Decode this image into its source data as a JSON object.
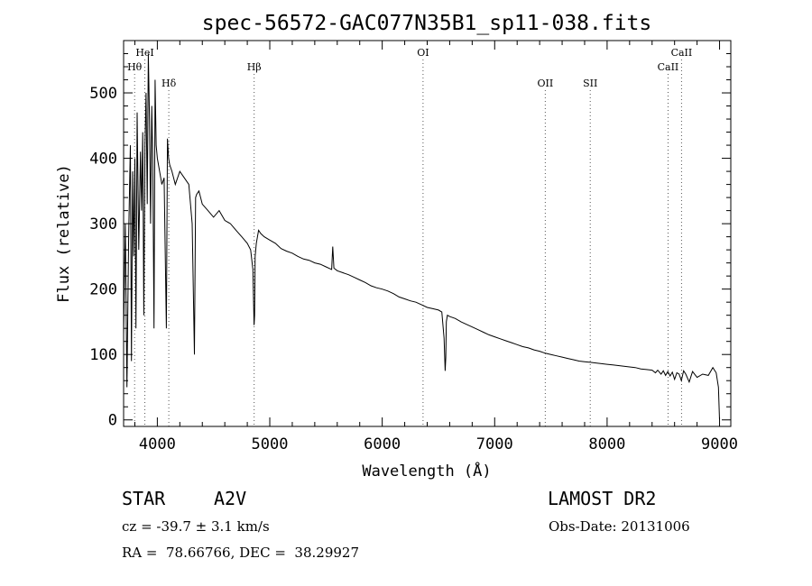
{
  "chart_data": {
    "type": "line",
    "title": "spec-56572-GAC077N35B1_sp11-038.fits",
    "xlabel": "Wavelength (Å)",
    "ylabel": "Flux (relative)",
    "xlim": [
      3700,
      9100
    ],
    "ylim": [
      -10,
      580
    ],
    "xticks": [
      4000,
      5000,
      6000,
      7000,
      8000,
      9000
    ],
    "yticks": [
      0,
      100,
      200,
      300,
      400,
      500
    ],
    "grid": false,
    "series": [
      {
        "x": [
          3700,
          3715,
          3730,
          3745,
          3760,
          3770,
          3780,
          3790,
          3800,
          3810,
          3820,
          3835,
          3850,
          3860,
          3870,
          3880,
          3890,
          3900,
          3910,
          3920,
          3930,
          3940,
          3950,
          3960,
          3970,
          3980,
          3990,
          4000,
          4020,
          4040,
          4060,
          4080,
          4090,
          4100,
          4110,
          4130,
          4160,
          4200,
          4240,
          4280,
          4310,
          4330,
          4340,
          4350,
          4370,
          4400,
          4450,
          4500,
          4550,
          4600,
          4650,
          4700,
          4750,
          4800,
          4830,
          4850,
          4860,
          4865,
          4870,
          4880,
          4900,
          4920,
          4950,
          5000,
          5050,
          5100,
          5150,
          5200,
          5250,
          5300,
          5350,
          5400,
          5450,
          5500,
          5550,
          5560,
          5570,
          5600,
          5650,
          5700,
          5750,
          5800,
          5850,
          5900,
          5950,
          6000,
          6050,
          6100,
          6150,
          6200,
          6250,
          6300,
          6350,
          6400,
          6450,
          6500,
          6530,
          6550,
          6560,
          6565,
          6570,
          6580,
          6600,
          6650,
          6700,
          6750,
          6800,
          6850,
          6900,
          6950,
          7000,
          7050,
          7100,
          7150,
          7200,
          7250,
          7300,
          7350,
          7400,
          7450,
          7500,
          7550,
          7600,
          7650,
          7700,
          7750,
          7800,
          7850,
          7900,
          7950,
          8000,
          8050,
          8100,
          8150,
          8200,
          8250,
          8300,
          8350,
          8400,
          8430,
          8450,
          8480,
          8500,
          8520,
          8540,
          8560,
          8580,
          8600,
          8620,
          8640,
          8660,
          8680,
          8700,
          8730,
          8760,
          8800,
          8850,
          8900,
          8940,
          8970,
          8990,
          9000
        ],
        "y": [
          130,
          300,
          50,
          280,
          420,
          90,
          380,
          250,
          400,
          140,
          470,
          260,
          410,
          320,
          440,
          160,
          420,
          500,
          330,
          560,
          460,
          300,
          480,
          390,
          140,
          520,
          420,
          400,
          380,
          360,
          370,
          140,
          430,
          400,
          390,
          380,
          360,
          380,
          370,
          360,
          300,
          100,
          340,
          345,
          350,
          330,
          320,
          310,
          320,
          305,
          300,
          290,
          280,
          270,
          260,
          230,
          145,
          160,
          250,
          270,
          290,
          285,
          280,
          275,
          270,
          262,
          258,
          255,
          250,
          246,
          244,
          240,
          238,
          234,
          230,
          265,
          232,
          228,
          225,
          222,
          218,
          214,
          210,
          205,
          202,
          200,
          197,
          193,
          188,
          185,
          182,
          180,
          176,
          172,
          170,
          168,
          165,
          125,
          75,
          95,
          150,
          160,
          158,
          155,
          150,
          146,
          142,
          138,
          134,
          130,
          127,
          124,
          121,
          118,
          115,
          112,
          110,
          107,
          105,
          102,
          100,
          98,
          96,
          94,
          92,
          90,
          89,
          88,
          87,
          86,
          85,
          84,
          83,
          82,
          81,
          80,
          78,
          77,
          76,
          72,
          76,
          70,
          75,
          68,
          74,
          67,
          73,
          62,
          72,
          70,
          60,
          75,
          70,
          58,
          74,
          65,
          70,
          68,
          80,
          72,
          50,
          0
        ]
      }
    ],
    "annotations": [
      {
        "label": "HeI",
        "x": 3889,
        "row": 1
      },
      {
        "label": "Hθ",
        "x": 3798,
        "row": 2
      },
      {
        "label": "Hδ",
        "x": 4102,
        "row": 3
      },
      {
        "label": "Hβ",
        "x": 4861,
        "row": 2
      },
      {
        "label": "OI",
        "x": 6363,
        "row": 1
      },
      {
        "label": "OII",
        "x": 7450,
        "row": 3
      },
      {
        "label": "SII",
        "x": 7850,
        "row": 3
      },
      {
        "label": "CaII",
        "x": 8542,
        "row": 2
      },
      {
        "label": "CaII",
        "x": 8662,
        "row": 1
      }
    ]
  },
  "info": {
    "object_class": "STAR",
    "subclass": "A2V",
    "survey": "LAMOST DR2",
    "redshift": "cz = -39.7 ± 3.1 km/s",
    "obs_date": "Obs-Date: 20131006",
    "coords": "RA =  78.66766, DEC =  38.29927"
  }
}
